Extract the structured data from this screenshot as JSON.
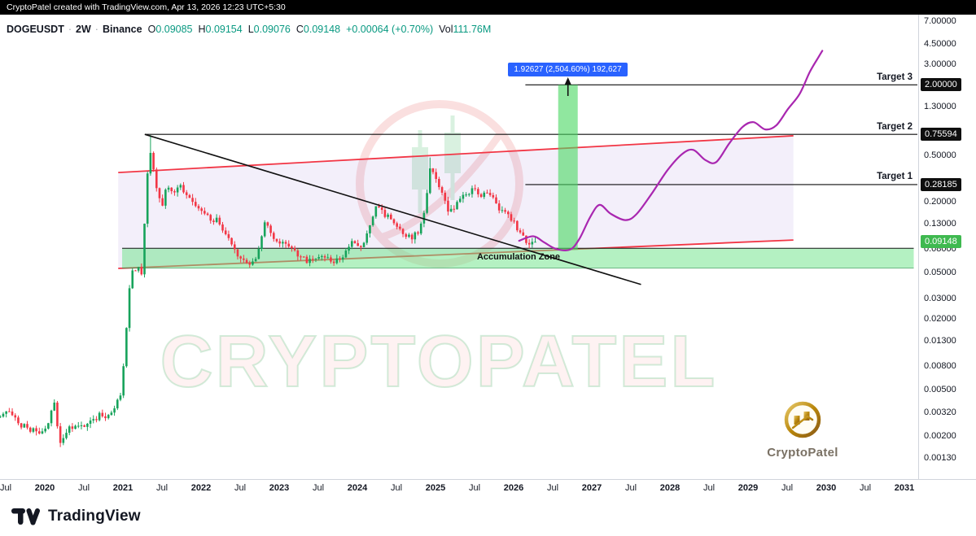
{
  "top_bar": {
    "text": "CryptoPatel created with TradingView.com, Apr 13, 2026 12:23 UTC+5:30"
  },
  "legend": {
    "symbol": "DOGEUSDT",
    "sep1": "·",
    "interval": "2W",
    "sep2": "·",
    "exchange": "Binance",
    "o_label": "O",
    "o": "0.09085",
    "h_label": "H",
    "h": "0.09154",
    "l_label": "L",
    "l": "0.09076",
    "c_label": "C",
    "c": "0.09148",
    "change": "+0.00064 (+0.70%)",
    "vol_label": "Vol",
    "vol": "111.76M"
  },
  "watermark": {
    "text": "CRYPTOPATEL"
  },
  "brand": {
    "name": "CryptoPatel"
  },
  "footer": {
    "brand": "TradingView"
  },
  "colors": {
    "up": "#17a35b",
    "down": "#f23645",
    "legend_value": "#089981",
    "target_line": "#0d0d0d",
    "channel_line": "#f23645",
    "channel_fill": "rgba(123,77,204,0.09)",
    "zone_fill": "rgba(106,227,134,0.5)",
    "zone_top_line": "#141414",
    "zone_bottom_line": "rgba(21,128,61,0.55)",
    "projection_bar": "rgba(76,217,100,0.62)",
    "forecast_line": "#a927b0",
    "label_blue": "#2962ff",
    "badge_black": "#0f0f0f",
    "badge_green": "#3fb950"
  },
  "chart_data": {
    "type": "candlestick",
    "symbol": "DOGEUSDT",
    "interval": "2W",
    "exchange": "Binance",
    "scale": "log",
    "ohlc_current": {
      "open": 0.09085,
      "high": 0.09154,
      "low": 0.09076,
      "close": 0.09148,
      "change": "+0.00064 (+0.70%)",
      "volume": "111.76M"
    },
    "y_ticks": [
      [
        "7.00000",
        7
      ],
      [
        "4.50000",
        4.5
      ],
      [
        "3.00000",
        3
      ],
      [
        "1.30000",
        1.3
      ],
      [
        "0.50000",
        0.5
      ],
      [
        "0.20000",
        0.2
      ],
      [
        "0.13000",
        0.13
      ],
      [
        "0.08000",
        0.08
      ],
      [
        "0.05000",
        0.05
      ],
      [
        "0.03000",
        0.03
      ],
      [
        "0.02000",
        0.02
      ],
      [
        "0.01300",
        0.013
      ],
      [
        "0.00800",
        0.008
      ],
      [
        "0.00500",
        0.005
      ],
      [
        "0.00320",
        0.0032
      ],
      [
        "0.00200",
        0.002
      ],
      [
        "0.00130",
        0.0013
      ]
    ],
    "time_labels": [
      [
        "Jul",
        2019.5
      ],
      [
        "2020",
        2020
      ],
      [
        "Jul",
        2020.5
      ],
      [
        "2021",
        2021
      ],
      [
        "Jul",
        2021.5
      ],
      [
        "2022",
        2022
      ],
      [
        "Jul",
        2022.5
      ],
      [
        "2023",
        2023
      ],
      [
        "Jul",
        2023.5
      ],
      [
        "2024",
        2024
      ],
      [
        "Jul",
        2024.5
      ],
      [
        "2025",
        2025
      ],
      [
        "Jul",
        2025.5
      ],
      [
        "2026",
        2026
      ],
      [
        "Jul",
        2026.5
      ],
      [
        "2027",
        2027
      ],
      [
        "Jul",
        2027.5
      ],
      [
        "2028",
        2028
      ],
      [
        "Jul",
        2028.5
      ],
      [
        "2029",
        2029
      ],
      [
        "Jul",
        2029.5
      ],
      [
        "2030",
        2030
      ],
      [
        "Jul",
        2030.5
      ],
      [
        "2031",
        2031
      ]
    ],
    "candles_start": 2019.43,
    "candles_end": 2026.29,
    "price_anchors": [
      [
        2019.43,
        0.0029
      ],
      [
        2019.55,
        0.0034
      ],
      [
        2019.65,
        0.0026
      ],
      [
        2019.8,
        0.0023
      ],
      [
        2019.95,
        0.0021
      ],
      [
        2020.05,
        0.0026
      ],
      [
        2020.12,
        0.0039
      ],
      [
        2020.2,
        0.0017
      ],
      [
        2020.3,
        0.0023
      ],
      [
        2020.45,
        0.0025
      ],
      [
        2020.6,
        0.0026
      ],
      [
        2020.7,
        0.0031
      ],
      [
        2020.8,
        0.0028
      ],
      [
        2020.9,
        0.0035
      ],
      [
        2020.98,
        0.0046
      ],
      [
        2021.06,
        0.022
      ],
      [
        2021.1,
        0.05
      ],
      [
        2021.18,
        0.055
      ],
      [
        2021.24,
        0.05
      ],
      [
        2021.3,
        0.26
      ],
      [
        2021.345,
        0.6
      ],
      [
        2021.42,
        0.3
      ],
      [
        2021.5,
        0.17
      ],
      [
        2021.56,
        0.28
      ],
      [
        2021.64,
        0.24
      ],
      [
        2021.72,
        0.28
      ],
      [
        2021.8,
        0.24
      ],
      [
        2021.9,
        0.2
      ],
      [
        2022.0,
        0.17
      ],
      [
        2022.1,
        0.145
      ],
      [
        2022.2,
        0.14
      ],
      [
        2022.3,
        0.11
      ],
      [
        2022.4,
        0.08
      ],
      [
        2022.5,
        0.065
      ],
      [
        2022.6,
        0.059
      ],
      [
        2022.7,
        0.062
      ],
      [
        2022.82,
        0.14
      ],
      [
        2022.9,
        0.1
      ],
      [
        2023.0,
        0.085
      ],
      [
        2023.1,
        0.088
      ],
      [
        2023.2,
        0.075
      ],
      [
        2023.3,
        0.066
      ],
      [
        2023.42,
        0.061
      ],
      [
        2023.55,
        0.071
      ],
      [
        2023.68,
        0.062
      ],
      [
        2023.8,
        0.066
      ],
      [
        2023.9,
        0.086
      ],
      [
        2023.98,
        0.094
      ],
      [
        2024.05,
        0.082
      ],
      [
        2024.15,
        0.115
      ],
      [
        2024.24,
        0.185
      ],
      [
        2024.32,
        0.16
      ],
      [
        2024.4,
        0.15
      ],
      [
        2024.5,
        0.12
      ],
      [
        2024.58,
        0.105
      ],
      [
        2024.68,
        0.1
      ],
      [
        2024.78,
        0.11
      ],
      [
        2024.86,
        0.16
      ],
      [
        2024.93,
        0.4
      ],
      [
        2025.0,
        0.315
      ],
      [
        2025.08,
        0.25
      ],
      [
        2025.16,
        0.17
      ],
      [
        2025.24,
        0.175
      ],
      [
        2025.32,
        0.21
      ],
      [
        2025.42,
        0.235
      ],
      [
        2025.5,
        0.27
      ],
      [
        2025.58,
        0.23
      ],
      [
        2025.66,
        0.245
      ],
      [
        2025.74,
        0.21
      ],
      [
        2025.82,
        0.17
      ],
      [
        2025.9,
        0.155
      ],
      [
        2026.0,
        0.135
      ],
      [
        2026.08,
        0.105
      ],
      [
        2026.16,
        0.092
      ],
      [
        2026.24,
        0.088
      ],
      [
        2026.29,
        0.0915
      ]
    ],
    "ath_wick": 0.745,
    "high_2024_wick": 0.48,
    "last_price": 0.09148,
    "last_price_label": "0.09148",
    "targets": [
      {
        "label": "Target 3",
        "price": 2.0,
        "axis_label": "2.00000",
        "start_year": 2026.15
      },
      {
        "label": "Target 2",
        "price": 0.75594,
        "axis_label": "0.75594",
        "start_year": 2021.28
      },
      {
        "label": "Target 1",
        "price": 0.28185,
        "axis_label": "0.28185",
        "start_year": 2026.15
      }
    ],
    "trendline": {
      "from": [
        2021.28,
        0.756
      ],
      "to": [
        2027.63,
        0.0395
      ]
    },
    "channel": {
      "upper": [
        [
          2020.94,
          0.357
        ],
        [
          2029.58,
          0.735
        ]
      ],
      "lower": [
        [
          2020.94,
          0.0542
        ],
        [
          2029.58,
          0.0947
        ]
      ]
    },
    "accumulation_zone": {
      "label": "Accumulation Zone",
      "from_year": 2020.99,
      "to_year": 2031.12,
      "top_price": 0.0805,
      "bottom_price": 0.0545
    },
    "projection": {
      "label": "1.92627 (2,504.60%) 192,627",
      "price_delta": 1.92627,
      "percent_gain": "2,504.60%",
      "bars_value": "192,627",
      "from_year": 2026.57,
      "to_year": 2026.82,
      "top_price": 2.0,
      "bottom_price": 0.078
    },
    "forecast_path": [
      [
        2026.07,
        0.0933
      ],
      [
        2026.25,
        0.102
      ],
      [
        2026.39,
        0.0905
      ],
      [
        2026.54,
        0.0797
      ],
      [
        2026.72,
        0.0784
      ],
      [
        2026.84,
        0.0966
      ],
      [
        2026.98,
        0.149
      ],
      [
        2027.1,
        0.189
      ],
      [
        2027.24,
        0.159
      ],
      [
        2027.43,
        0.14
      ],
      [
        2027.57,
        0.157
      ],
      [
        2027.76,
        0.232
      ],
      [
        2027.97,
        0.375
      ],
      [
        2028.16,
        0.516
      ],
      [
        2028.3,
        0.557
      ],
      [
        2028.45,
        0.458
      ],
      [
        2028.59,
        0.437
      ],
      [
        2028.76,
        0.634
      ],
      [
        2028.93,
        0.875
      ],
      [
        2029.07,
        0.961
      ],
      [
        2029.22,
        0.833
      ],
      [
        2029.36,
        0.901
      ],
      [
        2029.51,
        1.243
      ],
      [
        2029.66,
        1.676
      ],
      [
        2029.79,
        2.58
      ],
      [
        2029.9,
        3.44
      ],
      [
        2029.95,
        3.91
      ]
    ]
  }
}
